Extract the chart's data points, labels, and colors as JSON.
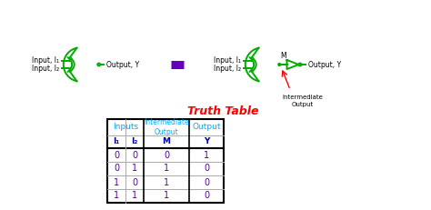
{
  "title": "Truth Table",
  "title_color": "#ff0000",
  "gate_color": "#00aa00",
  "table_header_color1": "#00aaff",
  "table_header_color2": "#0000aa",
  "table_data_color": "#5500aa",
  "bg_color": "#ffffff",
  "equiv_color": "#6600bb",
  "table_data": [
    [
      0,
      0,
      0,
      1
    ],
    [
      0,
      1,
      1,
      0
    ],
    [
      1,
      0,
      1,
      0
    ],
    [
      1,
      1,
      1,
      0
    ]
  ]
}
